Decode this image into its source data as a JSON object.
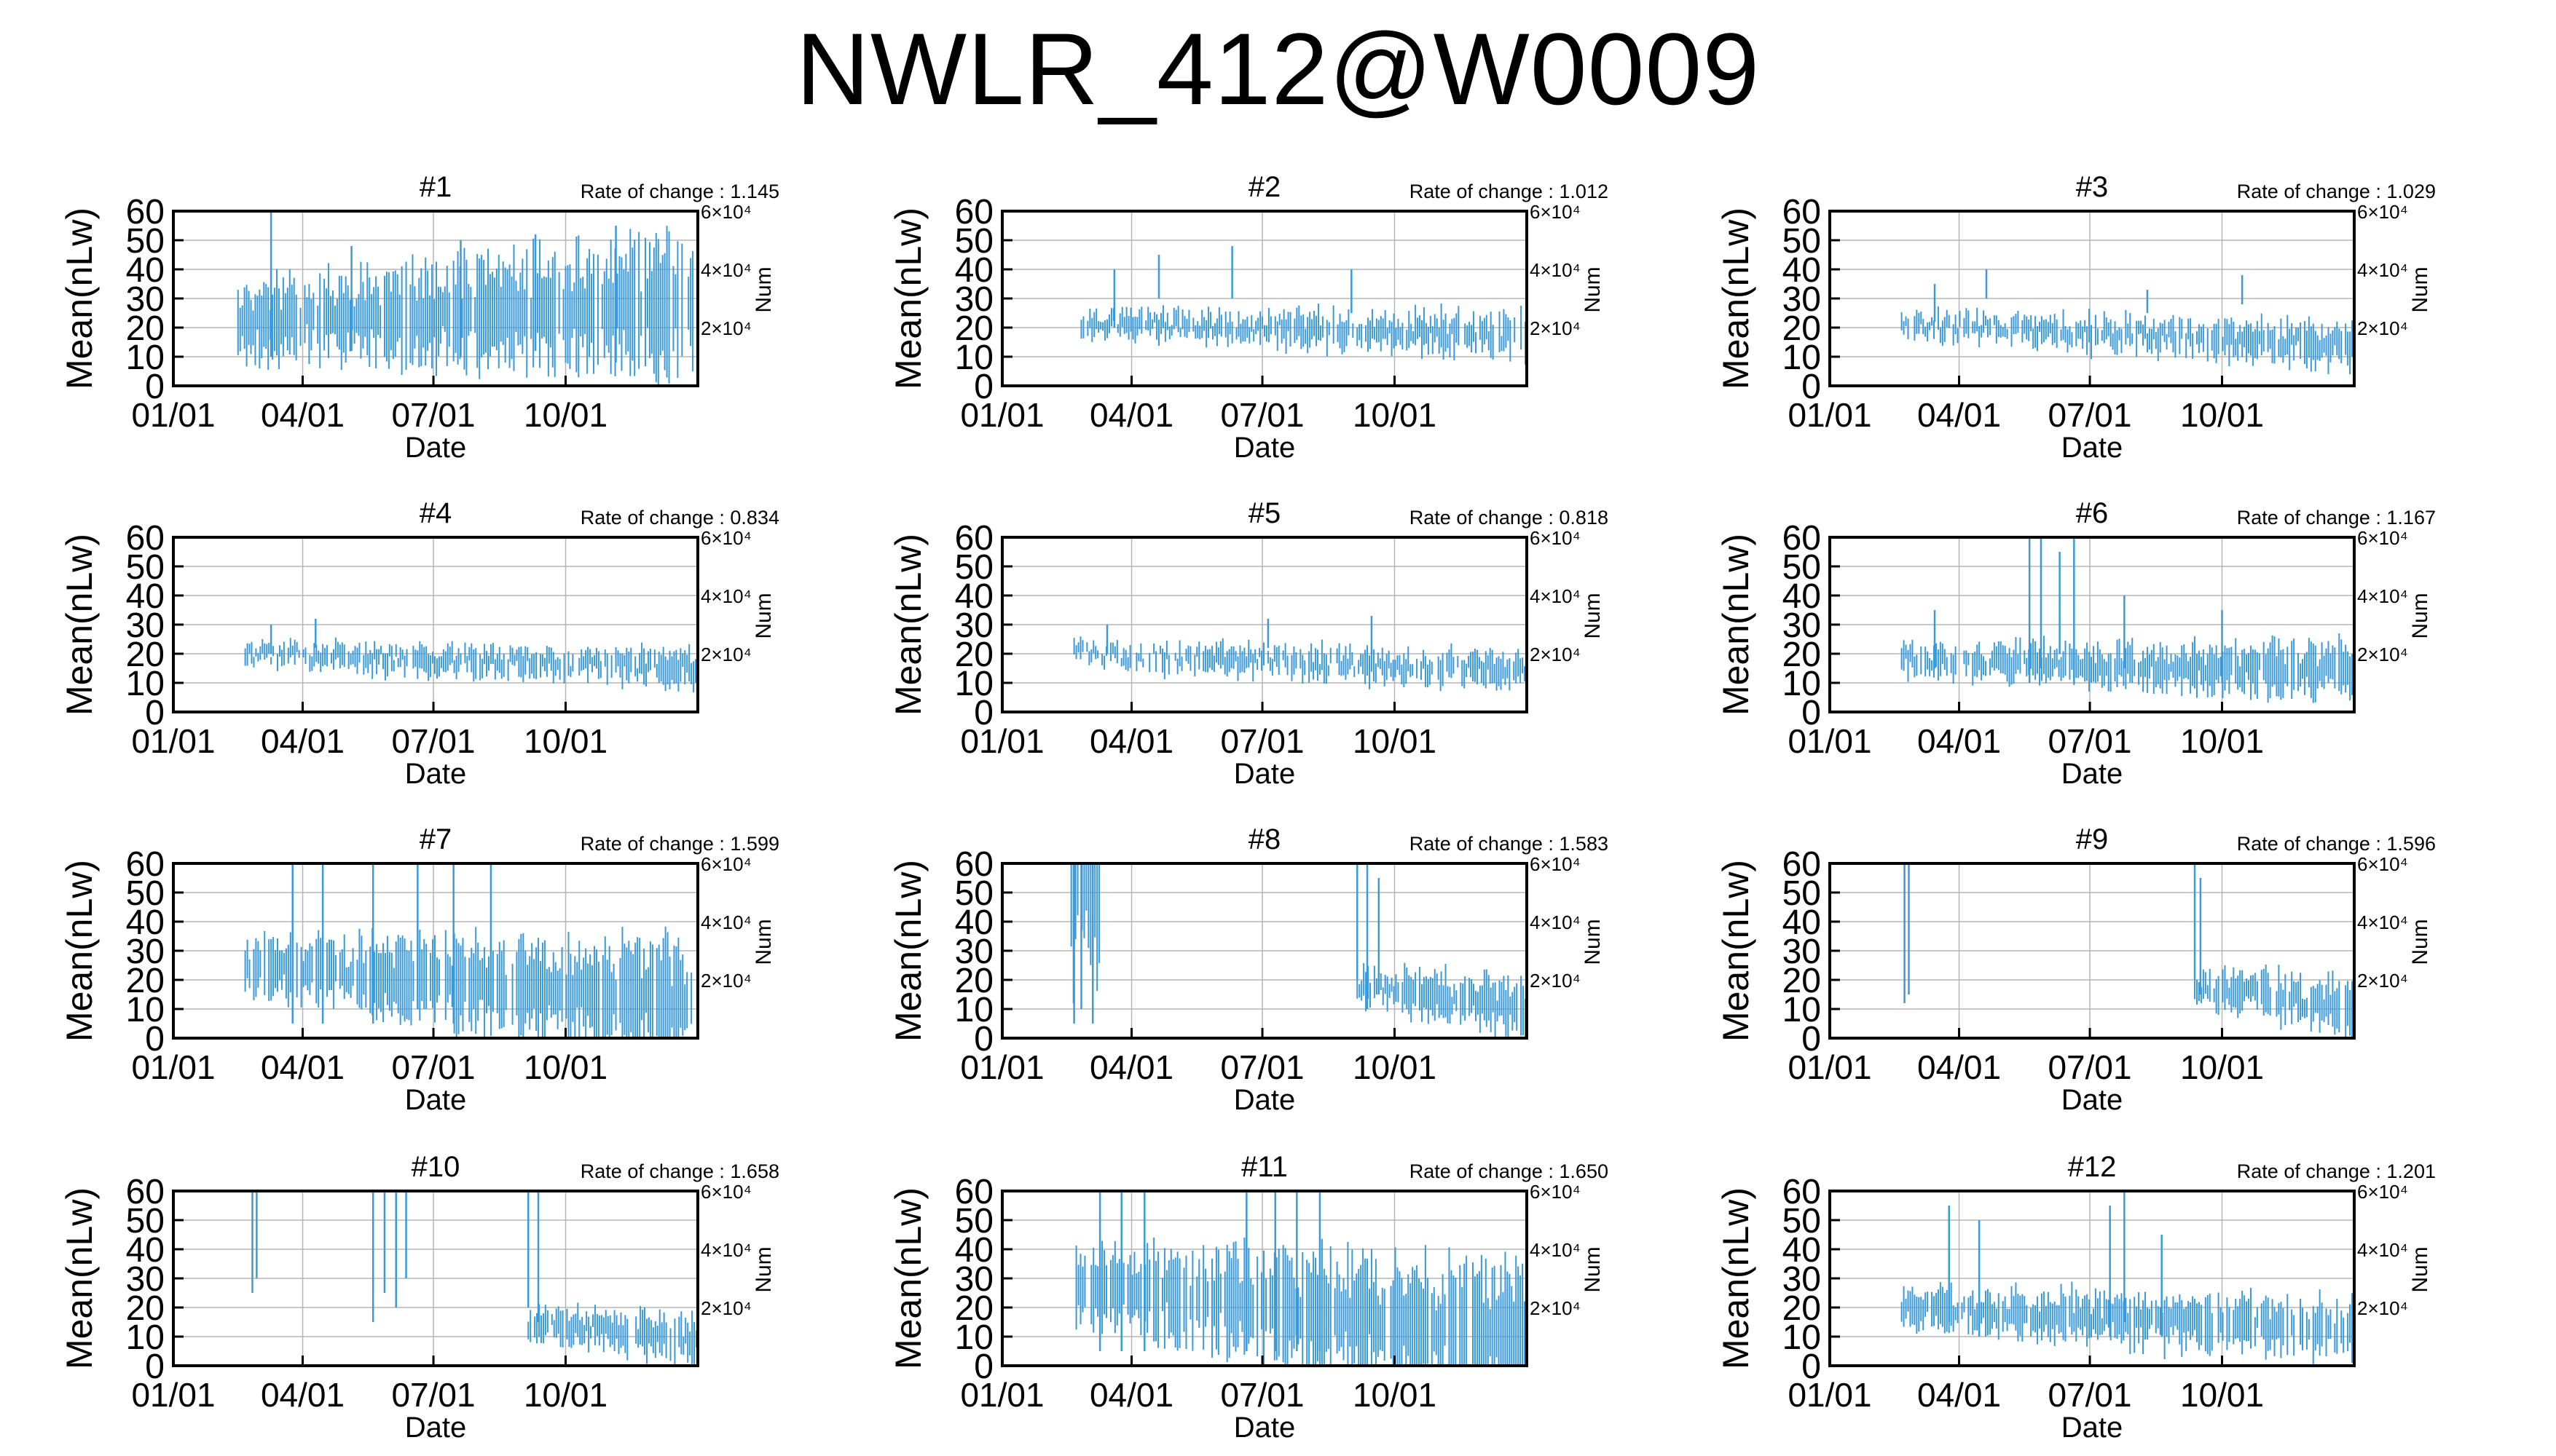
{
  "figure": {
    "title": "NWLR_412@W0009",
    "accent": "#3a9ad9"
  },
  "chart_data": [
    {
      "type": "errorbar",
      "title": "#1",
      "rate_label": "Rate of change : 1.145",
      "xlabel": "Date",
      "ylabel": "Mean(nLw)",
      "y2label": "Num",
      "xticks": [
        "01/01",
        "04/01",
        "07/01",
        "10/01"
      ],
      "yticks": [
        "0",
        "10",
        "20",
        "30",
        "40",
        "50",
        "60"
      ],
      "y2ticks": [
        "2×10⁴",
        "4×10⁴",
        "6×10⁴"
      ],
      "ylim": [
        0,
        60
      ],
      "segments": [
        {
          "from": "02/15",
          "to": "12/31",
          "mean": [
            22,
            28
          ],
          "spread": [
            10,
            20
          ]
        }
      ],
      "spikes": [
        [
          "03/10",
          10,
          60
        ],
        [
          "05/05",
          12,
          48
        ],
        [
          "07/20",
          10,
          50
        ],
        [
          "09/10",
          12,
          52
        ],
        [
          "11/05",
          8,
          55
        ]
      ]
    },
    {
      "type": "errorbar",
      "title": "#2",
      "rate_label": "Rate of change : 1.012",
      "xlabel": "Date",
      "ylabel": "Mean(nLw)",
      "y2label": "Num",
      "xticks": [
        "01/01",
        "04/01",
        "07/01",
        "10/01"
      ],
      "yticks": [
        "0",
        "10",
        "20",
        "30",
        "40",
        "50",
        "60"
      ],
      "y2ticks": [
        "2×10⁴",
        "4×10⁴",
        "6×10⁴"
      ],
      "ylim": [
        0,
        60
      ],
      "segments": [
        {
          "from": "02/25",
          "to": "12/31",
          "mean": [
            22,
            17
          ],
          "spread": [
            3,
            6
          ]
        }
      ],
      "spikes": [
        [
          "03/20",
          20,
          40
        ],
        [
          "04/20",
          30,
          45
        ],
        [
          "06/10",
          30,
          48
        ],
        [
          "09/01",
          25,
          40
        ]
      ]
    },
    {
      "type": "errorbar",
      "title": "#3",
      "rate_label": "Rate of change : 1.029",
      "xlabel": "Date",
      "ylabel": "Mean(nLw)",
      "y2label": "Num",
      "xticks": [
        "01/01",
        "04/01",
        "07/01",
        "10/01"
      ],
      "yticks": [
        "0",
        "10",
        "20",
        "30",
        "40",
        "50",
        "60"
      ],
      "y2ticks": [
        "2×10⁴",
        "4×10⁴",
        "6×10⁴"
      ],
      "ylim": [
        0,
        60
      ],
      "segments": [
        {
          "from": "02/20",
          "to": "12/31",
          "mean": [
            21,
            14
          ],
          "spread": [
            3,
            6
          ]
        }
      ],
      "spikes": [
        [
          "03/15",
          22,
          35
        ],
        [
          "04/20",
          30,
          40
        ],
        [
          "08/10",
          25,
          33
        ],
        [
          "10/15",
          28,
          38
        ]
      ]
    },
    {
      "type": "errorbar",
      "title": "#4",
      "rate_label": "Rate of change : 0.834",
      "xlabel": "Date",
      "ylabel": "Mean(nLw)",
      "y2label": "Num",
      "xticks": [
        "01/01",
        "04/01",
        "07/01",
        "10/01"
      ],
      "yticks": [
        "0",
        "10",
        "20",
        "30",
        "40",
        "50",
        "60"
      ],
      "y2ticks": [
        "2×10⁴",
        "4×10⁴",
        "6×10⁴"
      ],
      "ylim": [
        0,
        60
      ],
      "segments": [
        {
          "from": "02/20",
          "to": "12/31",
          "mean": [
            20,
            15
          ],
          "spread": [
            3,
            5
          ]
        }
      ],
      "spikes": [
        [
          "03/10",
          20,
          30
        ],
        [
          "04/10",
          22,
          32
        ]
      ]
    },
    {
      "type": "errorbar",
      "title": "#5",
      "rate_label": "Rate of change : 0.818",
      "xlabel": "Date",
      "ylabel": "Mean(nLw)",
      "y2label": "Num",
      "xticks": [
        "01/01",
        "04/01",
        "07/01",
        "10/01"
      ],
      "yticks": [
        "0",
        "10",
        "20",
        "30",
        "40",
        "50",
        "60"
      ],
      "y2ticks": [
        "2×10⁴",
        "4×10⁴",
        "6×10⁴"
      ],
      "ylim": [
        0,
        60
      ],
      "segments": [
        {
          "from": "02/20",
          "to": "12/31",
          "mean": [
            20,
            14
          ],
          "spread": [
            3,
            5
          ]
        }
      ],
      "spikes": [
        [
          "03/15",
          20,
          30
        ],
        [
          "07/05",
          22,
          32
        ],
        [
          "09/15",
          20,
          33
        ]
      ]
    },
    {
      "type": "errorbar",
      "title": "#6",
      "rate_label": "Rate of change : 1.167",
      "xlabel": "Date",
      "ylabel": "Mean(nLw)",
      "y2label": "Num",
      "xticks": [
        "01/01",
        "04/01",
        "07/01",
        "10/01"
      ],
      "yticks": [
        "0",
        "10",
        "20",
        "30",
        "40",
        "50",
        "60"
      ],
      "y2ticks": [
        "2×10⁴",
        "4×10⁴",
        "6×10⁴"
      ],
      "ylim": [
        0,
        60
      ],
      "segments": [
        {
          "from": "02/20",
          "to": "12/31",
          "mean": [
            18,
            14
          ],
          "spread": [
            4,
            8
          ]
        }
      ],
      "spikes": [
        [
          "03/15",
          15,
          35
        ],
        [
          "05/20",
          10,
          60
        ],
        [
          "05/28",
          15,
          60
        ],
        [
          "06/10",
          20,
          55
        ],
        [
          "06/20",
          10,
          60
        ],
        [
          "07/25",
          15,
          40
        ],
        [
          "10/01",
          10,
          35
        ]
      ]
    },
    {
      "type": "errorbar",
      "title": "#7",
      "rate_label": "Rate of change : 1.599",
      "xlabel": "Date",
      "ylabel": "Mean(nLw)",
      "y2label": "Num",
      "xticks": [
        "01/01",
        "04/01",
        "07/01",
        "10/01"
      ],
      "yticks": [
        "0",
        "10",
        "20",
        "30",
        "40",
        "50",
        "60"
      ],
      "y2ticks": [
        "2×10⁴",
        "4×10⁴",
        "6×10⁴"
      ],
      "ylim": [
        0,
        60
      ],
      "segments": [
        {
          "from": "02/20",
          "to": "12/31",
          "mean": [
            25,
            12
          ],
          "spread": [
            8,
            18
          ]
        }
      ],
      "spikes": [
        [
          "03/25",
          5,
          60
        ],
        [
          "04/15",
          5,
          60
        ],
        [
          "05/20",
          5,
          60
        ],
        [
          "06/20",
          10,
          60
        ],
        [
          "07/15",
          5,
          60
        ],
        [
          "08/10",
          10,
          60
        ]
      ]
    },
    {
      "type": "errorbar",
      "title": "#8",
      "rate_label": "Rate of change : 1.583",
      "xlabel": "Date",
      "ylabel": "Mean(nLw)",
      "y2label": "Num",
      "xticks": [
        "01/01",
        "04/01",
        "07/01",
        "10/01"
      ],
      "yticks": [
        "0",
        "10",
        "20",
        "30",
        "40",
        "50",
        "60"
      ],
      "y2ticks": [
        "2×10⁴",
        "4×10⁴",
        "6×10⁴"
      ],
      "ylim": [
        0,
        60
      ],
      "segments": [
        {
          "from": "02/18",
          "to": "03/10",
          "mean": [
            55,
            55
          ],
          "spread": [
            30,
            30
          ]
        },
        {
          "from": "09/05",
          "to": "12/31",
          "mean": [
            18,
            10
          ],
          "spread": [
            5,
            8
          ]
        }
      ],
      "spikes": [
        [
          "02/20",
          5,
          60
        ],
        [
          "02/25",
          10,
          60
        ],
        [
          "03/05",
          5,
          60
        ],
        [
          "09/05",
          20,
          60
        ],
        [
          "09/12",
          10,
          60
        ],
        [
          "09/20",
          15,
          55
        ]
      ]
    },
    {
      "type": "errorbar",
      "title": "#9",
      "rate_label": "Rate of change : 1.596",
      "xlabel": "Date",
      "ylabel": "Mean(nLw)",
      "y2label": "Num",
      "xticks": [
        "01/01",
        "04/01",
        "07/01",
        "10/01"
      ],
      "yticks": [
        "0",
        "10",
        "20",
        "30",
        "40",
        "50",
        "60"
      ],
      "y2ticks": [
        "2×10⁴",
        "4×10⁴",
        "6×10⁴"
      ],
      "ylim": [
        0,
        60
      ],
      "segments": [
        {
          "from": "09/12",
          "to": "12/31",
          "mean": [
            18,
            10
          ],
          "spread": [
            5,
            8
          ]
        }
      ],
      "spikes": [
        [
          "02/22",
          12,
          60
        ],
        [
          "02/25",
          15,
          60
        ],
        [
          "09/12",
          20,
          60
        ],
        [
          "09/16",
          15,
          55
        ]
      ]
    },
    {
      "type": "errorbar",
      "title": "#10",
      "rate_label": "Rate of change : 1.658",
      "xlabel": "Date",
      "ylabel": "Mean(nLw)",
      "y2label": "Num",
      "xticks": [
        "01/01",
        "04/01",
        "07/01",
        "10/01"
      ],
      "yticks": [
        "0",
        "10",
        "20",
        "30",
        "40",
        "50",
        "60"
      ],
      "y2ticks": [
        "2×10⁴",
        "4×10⁴",
        "6×10⁴"
      ],
      "ylim": [
        0,
        60
      ],
      "segments": [
        {
          "from": "09/05",
          "to": "12/31",
          "mean": [
            15,
            9
          ],
          "spread": [
            4,
            7
          ]
        }
      ],
      "spikes": [
        [
          "02/25",
          25,
          60
        ],
        [
          "02/28",
          30,
          60
        ],
        [
          "05/20",
          15,
          60
        ],
        [
          "05/28",
          25,
          60
        ],
        [
          "06/05",
          20,
          60
        ],
        [
          "06/12",
          30,
          60
        ],
        [
          "09/05",
          20,
          60
        ],
        [
          "09/12",
          15,
          60
        ]
      ]
    },
    {
      "type": "errorbar",
      "title": "#11",
      "rate_label": "Rate of change : 1.650",
      "xlabel": "Date",
      "ylabel": "Mean(nLw)",
      "y2label": "Num",
      "xticks": [
        "01/01",
        "04/01",
        "07/01",
        "10/01"
      ],
      "yticks": [
        "0",
        "10",
        "20",
        "30",
        "40",
        "50",
        "60"
      ],
      "y2ticks": [
        "2×10⁴",
        "4×10⁴",
        "6×10⁴"
      ],
      "ylim": [
        0,
        60
      ],
      "segments": [
        {
          "from": "02/20",
          "to": "12/31",
          "mean": [
            28,
            10
          ],
          "spread": [
            12,
            20
          ]
        }
      ],
      "spikes": [
        [
          "03/10",
          5,
          60
        ],
        [
          "03/25",
          5,
          60
        ],
        [
          "04/10",
          5,
          60
        ],
        [
          "06/20",
          5,
          60
        ],
        [
          "07/10",
          5,
          60
        ],
        [
          "07/25",
          5,
          60
        ],
        [
          "08/10",
          5,
          60
        ]
      ]
    },
    {
      "type": "errorbar",
      "title": "#12",
      "rate_label": "Rate of change : 1.201",
      "xlabel": "Date",
      "ylabel": "Mean(nLw)",
      "y2label": "Num",
      "xticks": [
        "01/01",
        "04/01",
        "07/01",
        "10/01"
      ],
      "yticks": [
        "0",
        "10",
        "20",
        "30",
        "40",
        "50",
        "60"
      ],
      "y2ticks": [
        "2×10⁴",
        "4×10⁴",
        "6×10⁴"
      ],
      "ylim": [
        0,
        60
      ],
      "segments": [
        {
          "from": "02/20",
          "to": "12/31",
          "mean": [
            20,
            12
          ],
          "spread": [
            5,
            9
          ]
        }
      ],
      "spikes": [
        [
          "03/25",
          15,
          55
        ],
        [
          "04/15",
          10,
          50
        ],
        [
          "07/15",
          10,
          55
        ],
        [
          "07/25",
          15,
          60
        ],
        [
          "08/20",
          10,
          45
        ]
      ]
    }
  ]
}
